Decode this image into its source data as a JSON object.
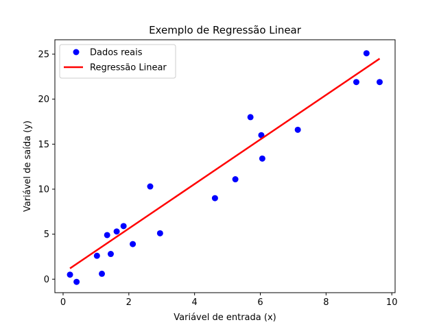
{
  "chart_data": {
    "type": "scatter",
    "title": "Exemplo de Regressão Linear",
    "xlabel": "Variável de entrada (x)",
    "ylabel": "Variável de saída (y)",
    "xlim": [
      -0.25,
      10.1
    ],
    "ylim": [
      -1.5,
      26.6
    ],
    "xticks": [
      0,
      2,
      4,
      6,
      8,
      10
    ],
    "yticks": [
      0,
      5,
      10,
      15,
      20,
      25
    ],
    "grid": false,
    "legend_position": "top-left",
    "series": [
      {
        "name": "Dados reais",
        "kind": "scatter",
        "color": "#0000ff",
        "points": [
          [
            0.21,
            0.5
          ],
          [
            0.41,
            -0.3
          ],
          [
            1.03,
            2.6
          ],
          [
            1.18,
            0.6
          ],
          [
            1.34,
            4.9
          ],
          [
            1.45,
            2.8
          ],
          [
            1.63,
            5.3
          ],
          [
            1.84,
            5.9
          ],
          [
            2.12,
            3.9
          ],
          [
            2.65,
            10.3
          ],
          [
            2.95,
            5.1
          ],
          [
            4.62,
            9.0
          ],
          [
            5.24,
            11.1
          ],
          [
            5.7,
            18.0
          ],
          [
            6.03,
            16.0
          ],
          [
            6.06,
            13.4
          ],
          [
            7.14,
            16.6
          ],
          [
            8.92,
            21.9
          ],
          [
            9.23,
            25.1
          ],
          [
            9.63,
            21.9
          ]
        ]
      },
      {
        "name": "Regressão Linear",
        "kind": "line",
        "color": "#ff0000",
        "points": [
          [
            0.21,
            1.2
          ],
          [
            9.63,
            24.5
          ]
        ]
      }
    ]
  }
}
